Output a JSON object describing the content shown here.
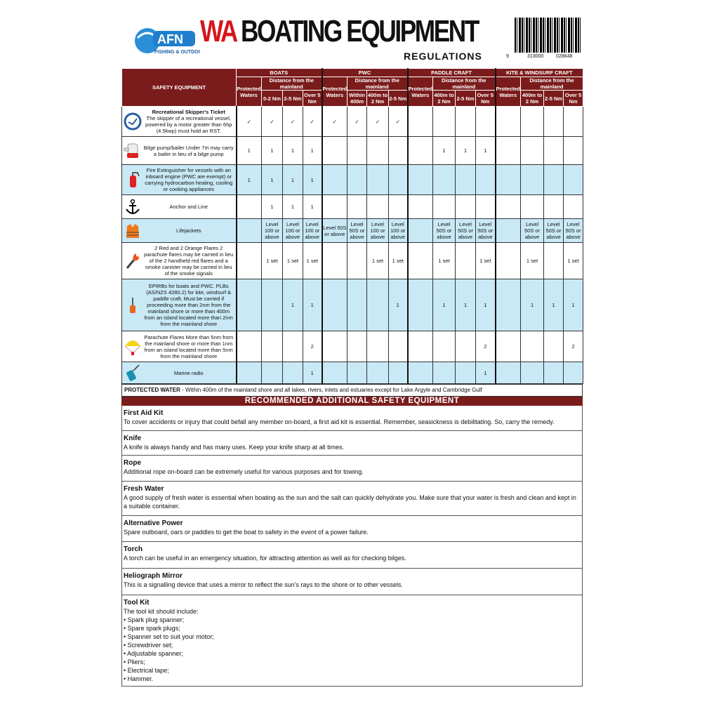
{
  "header": {
    "logo_text": "AFN",
    "logo_sub": "FISHING & OUTDOORS",
    "title_wa": "WA",
    "title_main": "BOATING EQUIPMENT",
    "subtitle": "REGULATIONS",
    "barcode_digits": [
      "9",
      "313000",
      "028648"
    ]
  },
  "table": {
    "corner": "SAFETY EQUIPMENT",
    "groups": [
      {
        "name": "BOATS",
        "protected": "Protected Waters",
        "distance": "Distance from the mainland",
        "cols": [
          "0-2 Nm",
          "2-5 Nm",
          "Over 5 Nm"
        ]
      },
      {
        "name": "PWC",
        "protected": "Protected Waters",
        "distance": "Distance from the mainland",
        "cols": [
          "Within 400m",
          "400m to 2 Nm",
          "2-5 Nm"
        ]
      },
      {
        "name": "PADDLE CRAFT",
        "protected": "Protected Waters",
        "distance": "Distance from the mainland",
        "cols": [
          "400m to 2 Nm",
          "2-5 Nm",
          "Over 5 Nm"
        ]
      },
      {
        "name": "KITE & WINDSURF CRAFT",
        "protected": "Protected Waters",
        "distance": "Distance from the mainland",
        "cols": [
          "400m to 2 Nm",
          "2-5 Nm",
          "Over 5 Nm"
        ]
      }
    ],
    "rows": [
      {
        "title": "Recreational Skipper's Ticket",
        "desc": "The skipper of a recreational vessel, powered by a motor greater than 6hp (4.5kwp) must hold an RST.",
        "icon": "rst-badge-icon",
        "blue": false,
        "check": true,
        "cells": [
          "✓",
          "✓",
          "✓",
          "✓",
          "✓",
          "✓",
          "✓",
          "✓",
          "",
          "",
          "",
          "",
          "",
          "",
          "",
          ""
        ]
      },
      {
        "title": "",
        "desc": "Bilge pump/bailer Under 7m may carry a bailer in lieu of a bilge pump",
        "icon": "bilge-pump-icon",
        "blue": false,
        "cells": [
          "1",
          "1",
          "1",
          "1",
          "",
          "",
          "",
          "",
          "",
          "1",
          "1",
          "1",
          "",
          "",
          "",
          ""
        ]
      },
      {
        "title": "",
        "desc": "Fire Extinguisher for vessels with an inboard engine (PWC are exempt) or carrying hydrocarbon heating, cooling or cooking appliances",
        "icon": "fire-extinguisher-icon",
        "blue": true,
        "cells": [
          "1",
          "1",
          "1",
          "1",
          "",
          "",
          "",
          "",
          "",
          "",
          "",
          "",
          "",
          "",
          "",
          ""
        ]
      },
      {
        "title": "",
        "desc": "Anchor and Line",
        "icon": "anchor-icon",
        "blue": false,
        "cells": [
          "",
          "1",
          "1",
          "1",
          "",
          "",
          "",
          "",
          "",
          "",
          "",
          "",
          "",
          "",
          "",
          ""
        ]
      },
      {
        "title": "",
        "desc": "Lifejackets",
        "icon": "lifejacket-icon",
        "blue": true,
        "cells": [
          "",
          "Level 100 or above",
          "Level 100 or above",
          "Level 100 or above",
          "Level 50S or above",
          "Level 50S or above",
          "Level 100 or above",
          "Level 100 or above",
          "",
          "Level 50S or above",
          "Level 50S or above",
          "Level 50S or above",
          "",
          "Level 50S or above",
          "Level 50S or above",
          "Level 50S or above"
        ]
      },
      {
        "title": "",
        "desc": "2 Red and 2 Orange Flares 2 parachute flares may be carried in lieu of the 2 handheld red flares and a smoke canister may be carried in lieu of the smoke signals",
        "icon": "flare-icon",
        "blue": false,
        "cells": [
          "",
          "1 set",
          "1 set",
          "1 set",
          "",
          "",
          "1 set",
          "1 set",
          "",
          "1 set",
          "",
          "1 set",
          "",
          "1 set",
          "",
          "1 set"
        ]
      },
      {
        "title": "",
        "desc": "EPIRBs for boats and PWC. PLBs (AS/NZS 4280.2) for kite, windsurf & paddle craft. Must be carried if proceeding more than 2nm from the mainland shore or more than 400m from an island located more than 2nm from the mainland shore",
        "icon": "epirb-icon",
        "blue": true,
        "cells": [
          "",
          "",
          "1",
          "1",
          "",
          "",
          "",
          "1",
          "",
          "1",
          "1",
          "1",
          "",
          "1",
          "1",
          "1"
        ]
      },
      {
        "title": "",
        "desc": "Parachute Flares More than 5nm from the mainland shore or more than 1nm from an island located more than 5nm from the mainland shore",
        "icon": "parachute-flare-icon",
        "blue": false,
        "cells": [
          "",
          "",
          "",
          "2",
          "",
          "",
          "",
          "",
          "",
          "",
          "",
          "2",
          "",
          "",
          "",
          "2"
        ]
      },
      {
        "title": "",
        "desc": "Marine radio",
        "icon": "marine-radio-icon",
        "blue": true,
        "cells": [
          "",
          "",
          "",
          "1",
          "",
          "",
          "",
          "",
          "",
          "",
          "",
          "1",
          "",
          "",
          "",
          ""
        ]
      }
    ]
  },
  "protected_note": {
    "label": "PROTECTED WATER",
    "text": " - Within 400m of the mainland shore and all lakes, rivers, inlets and estuaries except for Lake Argyle and Cambridge Gulf"
  },
  "recommended": {
    "heading": "RECOMMENDED ADDITIONAL SAFETY EQUIPMENT",
    "items": [
      {
        "title": "First Aid Kit",
        "text": "To cover accidents or injury that could befall any member on-board, a first aid kit is essential. Remember, seasickness is debilitating. So, carry the remedy."
      },
      {
        "title": "Knife",
        "text": "A knife is always handy and has many uses. Keep your knife sharp at all times."
      },
      {
        "title": "Rope",
        "text": "Additional rope on-board can be extremely useful for various purposes and for towing."
      },
      {
        "title": "Fresh Water",
        "text": "A good supply of fresh water is essential when boating as the sun and the salt can quickly dehydrate you. Make sure that your water is fresh and clean and kept in a suitable container."
      },
      {
        "title": "Alternative Power",
        "text": "Spare outboard, oars or paddles to get the boat to safety in the event of a power failure."
      },
      {
        "title": "Torch",
        "text": "A torch can be useful in an emergency situation, for attracting attention as well as for checking bilges."
      },
      {
        "title": "Heliograph Mirror",
        "text": "This is a signalling device that uses a mirror to reflect the sun's rays to the shore or to other vessels."
      },
      {
        "title": "Tool Kit",
        "text": "The tool kit should include:",
        "list": [
          "• Spark plug spanner;",
          "• Spare spark plugs;",
          "• Spanner set to suit your motor;",
          "• Screwdriver set;",
          "• Adjustable spanner;",
          "• Pliers;",
          "• Electrical tape;",
          "• Hammer."
        ]
      }
    ]
  },
  "colors": {
    "maroon": "#7b1c1c",
    "blue_row": "#c9e9f6",
    "title_red": "#d8141c"
  }
}
